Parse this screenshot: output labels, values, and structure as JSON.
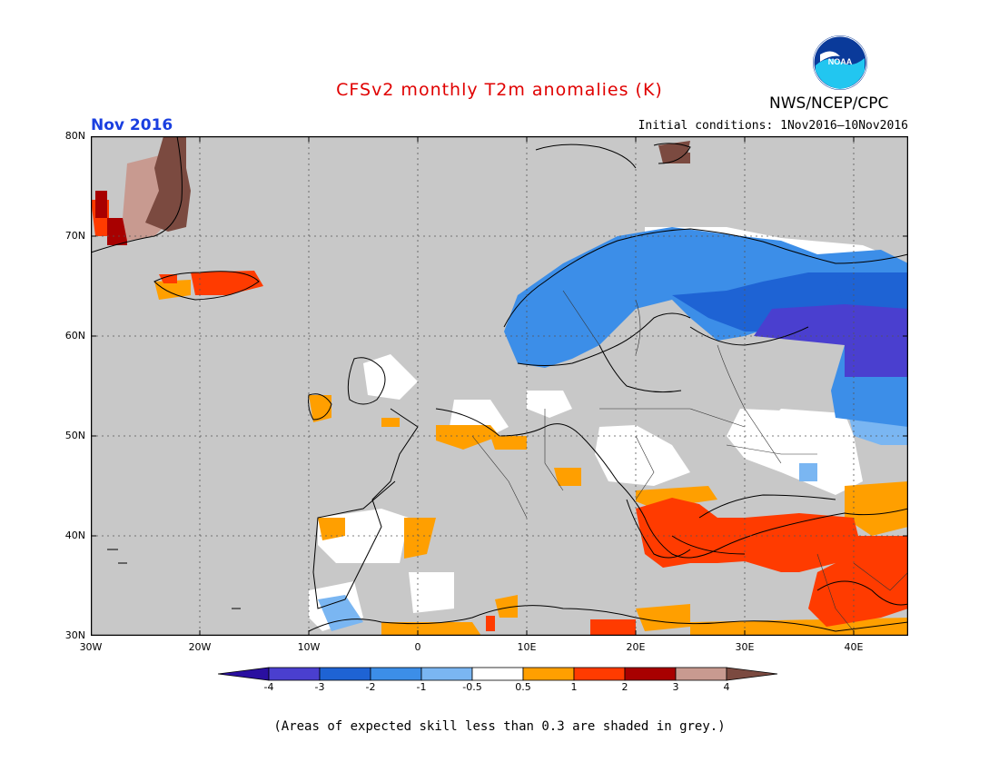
{
  "title": "CFSv2 monthly T2m anomalies (K)",
  "agency": "NWS/NCEP/CPC",
  "logo_text": "NOAA",
  "period": "Nov 2016",
  "initial_conditions": "Initial conditions: 1Nov2016—10Nov2016",
  "footnote": "(Areas of expected skill less than 0.3 are shaded in grey.)",
  "lat_labels": [
    "80N",
    "70N",
    "60N",
    "50N",
    "40N",
    "30N"
  ],
  "lon_labels": [
    "30W",
    "20W",
    "10W",
    "0",
    "10E",
    "20E",
    "30E",
    "40E"
  ],
  "colorbar": {
    "labels": [
      "-4",
      "-3",
      "-2",
      "-1",
      "-0.5",
      "0.5",
      "1",
      "2",
      "3",
      "4"
    ],
    "colors": [
      "#2a0fa0",
      "#4a3fcf",
      "#1e63d4",
      "#3c8ee8",
      "#7ab6f2",
      "#ffffff",
      "#ff9f00",
      "#ff3b00",
      "#a80000",
      "#c89a90",
      "#7b4a40"
    ]
  },
  "colors": {
    "skill_mask_grey": "#c8c8c8",
    "title": "#e00000",
    "period": "#1a3fe0"
  },
  "map_extent": {
    "lon": [
      -30,
      45
    ],
    "lat": [
      30,
      80
    ]
  }
}
